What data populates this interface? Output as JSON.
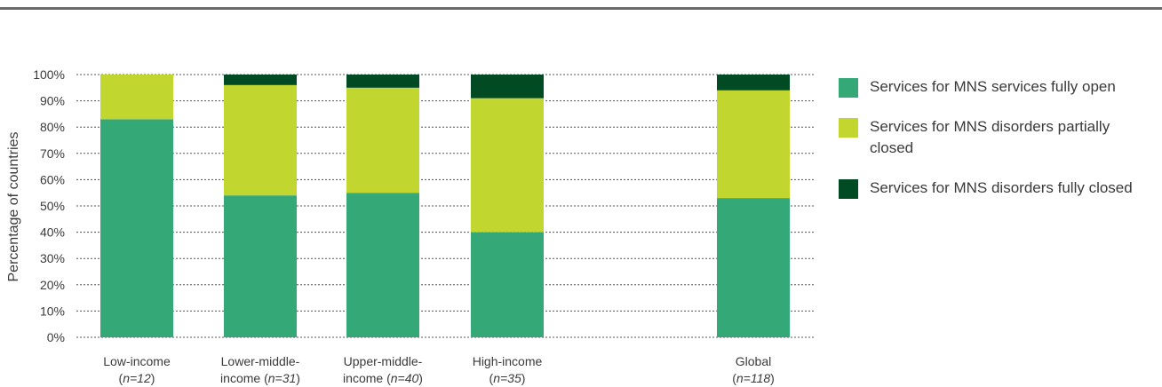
{
  "chart_data": {
    "type": "bar",
    "stacked": true,
    "ylabel": "Percentage of countries",
    "ylim": [
      0,
      100
    ],
    "yticks": [
      "0%",
      "10%",
      "20%",
      "30%",
      "40%",
      "50%",
      "60%",
      "70%",
      "80%",
      "90%",
      "100%"
    ],
    "grid": "horizontal-dotted",
    "legend_position": "right",
    "categories": [
      {
        "name_lines": [
          "Low-income"
        ],
        "n": "n=12"
      },
      {
        "name_lines": [
          "Lower-middle-",
          "income"
        ],
        "n": "n=31"
      },
      {
        "name_lines": [
          "Upper-middle-",
          "income"
        ],
        "n": "n=40"
      },
      {
        "name_lines": [
          "High-income"
        ],
        "n": "n=35"
      },
      {
        "name_lines": [
          "Global"
        ],
        "n": "n=118"
      }
    ],
    "series": [
      {
        "name": "Services for MNS services fully open",
        "color": "#34a877",
        "values": [
          83,
          54,
          55,
          40,
          53
        ]
      },
      {
        "name": "Services for MNS disorders partially closed",
        "color": "#c2d630",
        "values": [
          17,
          42,
          40,
          51,
          41
        ]
      },
      {
        "name": "Services for MNS disorders fully closed",
        "color": "#004a24",
        "values": [
          0,
          4,
          5,
          9,
          6
        ]
      }
    ]
  }
}
